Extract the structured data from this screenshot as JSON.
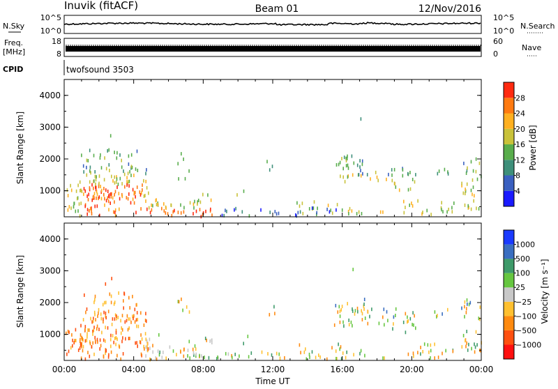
{
  "header": {
    "station": "Inuvik (fitACF)",
    "beam": "Beam 01",
    "date": "12/Nov/2016"
  },
  "top_panels": {
    "nsky_label": "N.Sky",
    "nsky_top": "10^5",
    "nsky_bottom": "10^0",
    "nsearch_label": "N.Search",
    "nsearch_top": "10^5",
    "nsearch_bottom": "10^0",
    "freq_label_1": "Freq.",
    "freq_label_2": "[MHz]",
    "freq_top": "18",
    "freq_bottom": "8",
    "nave_label": "Nave",
    "nave_top": "60",
    "nave_bottom": "0",
    "cpid_label": "CPID",
    "cpid_value": "twofsound 3503"
  },
  "chart_data": [
    {
      "type": "heatmap",
      "panel": "power",
      "ylabel": "Slant Range [km]",
      "y_ticks": [
        "1000",
        "2000",
        "3000",
        "4000"
      ],
      "y_tick_values": [
        1000,
        2000,
        3000,
        4000
      ],
      "ylim": [
        180,
        4500
      ],
      "xlim_hours": [
        0,
        24
      ],
      "colorbar": {
        "label": "Power [dB]",
        "ticks": [
          "4",
          "8",
          "12",
          "16",
          "20",
          "24",
          "28"
        ],
        "tick_values": [
          4,
          8,
          12,
          16,
          20,
          24,
          28
        ],
        "range": [
          0,
          32
        ],
        "colors": [
          "#1a1aff",
          "#3a60c0",
          "#3e8f7a",
          "#59ad4c",
          "#c9c23a",
          "#ffb020",
          "#ff7a10",
          "#ff2a10"
        ]
      }
    },
    {
      "type": "heatmap",
      "panel": "velocity",
      "ylabel": "Slant Range [km]",
      "y_ticks": [
        "1000",
        "2000",
        "3000",
        "4000"
      ],
      "y_tick_values": [
        1000,
        2000,
        3000,
        4000
      ],
      "ylim": [
        180,
        4500
      ],
      "xlim_hours": [
        0,
        24
      ],
      "xlabel": "Time UT",
      "x_ticks": [
        "00:00",
        "04:00",
        "08:00",
        "12:00",
        "16:00",
        "20:00",
        "00:00"
      ],
      "x_tick_values": [
        0,
        4,
        8,
        12,
        16,
        20,
        24
      ],
      "colorbar": {
        "label": "Velocity [m s⁻¹]",
        "ticks": [
          "1000",
          "500",
          "100",
          "25",
          "−25",
          "−100",
          "−500",
          "−1000"
        ],
        "colors": [
          "#1a3aff",
          "#3a6ec0",
          "#3e9a6a",
          "#66c640",
          "#c8c8c8",
          "#ffc030",
          "#ff8a10",
          "#ff5010",
          "#ff1010"
        ]
      }
    }
  ]
}
